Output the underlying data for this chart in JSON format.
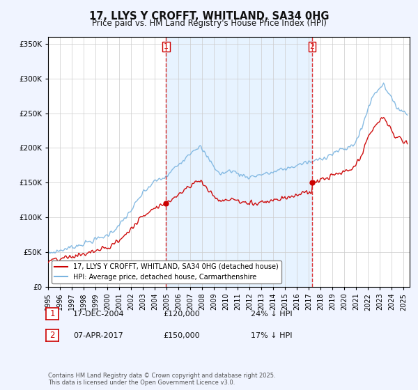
{
  "title": "17, LLYS Y CROFFT, WHITLAND, SA34 0HG",
  "subtitle": "Price paid vs. HM Land Registry's House Price Index (HPI)",
  "legend_line1": "17, LLYS Y CROFFT, WHITLAND, SA34 0HG (detached house)",
  "legend_line2": "HPI: Average price, detached house, Carmarthenshire",
  "footnote": "Contains HM Land Registry data © Crown copyright and database right 2025.\nThis data is licensed under the Open Government Licence v3.0.",
  "sale1_date": "17-DEC-2004",
  "sale1_price": "£120,000",
  "sale1_hpi": "24% ↓ HPI",
  "sale2_date": "07-APR-2017",
  "sale2_price": "£150,000",
  "sale2_hpi": "17% ↓ HPI",
  "vline1_x": 2004.96,
  "vline2_x": 2017.27,
  "sale1_marker_x": 2004.96,
  "sale1_marker_y": 120000,
  "sale2_marker_x": 2017.27,
  "sale2_marker_y": 150000,
  "hpi_color": "#7ab4e0",
  "price_color": "#cc0000",
  "vline_color": "#dd2222",
  "shade_color": "#ddeeff",
  "background_color": "#f0f4ff",
  "plot_bg_color": "#ffffff",
  "ylim": [
    0,
    360000
  ],
  "xlim": [
    1995.0,
    2025.5
  ],
  "yticks": [
    0,
    50000,
    100000,
    150000,
    200000,
    250000,
    300000,
    350000
  ]
}
